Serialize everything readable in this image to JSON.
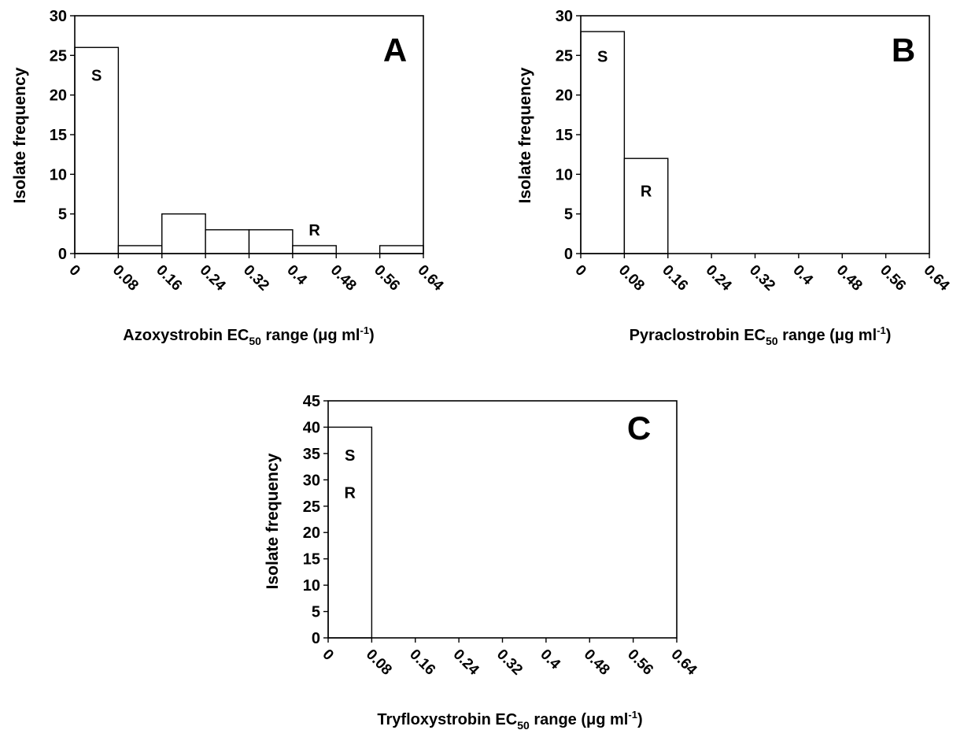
{
  "chart_data": [
    {
      "type": "bar",
      "panel": "A",
      "ylabel": "Isolate frequency",
      "xlabel": {
        "prefix": "Azoxystrobin EC",
        "sub": "50",
        "mid": " range (μg ml",
        "sup": "-1",
        "suffix": ")"
      },
      "x_ticks": [
        "0",
        "0.08",
        "0.16",
        "0.24",
        "0.32",
        "0.4",
        "0.48",
        "0.56",
        "0.64"
      ],
      "y_ticks": [
        "0",
        "5",
        "10",
        "15",
        "20",
        "25",
        "30"
      ],
      "ylim": [
        0,
        30
      ],
      "bins": [
        [
          0,
          0.08
        ],
        [
          0.08,
          0.16
        ],
        [
          0.16,
          0.24
        ],
        [
          0.24,
          0.32
        ],
        [
          0.32,
          0.4
        ],
        [
          0.4,
          0.48
        ],
        [
          0.48,
          0.56
        ],
        [
          0.56,
          0.64
        ]
      ],
      "values": [
        26,
        1,
        5,
        3,
        3,
        1,
        0,
        1
      ],
      "annotations": [
        {
          "text": "S",
          "x": 0.04,
          "y": 22.5
        },
        {
          "text": "R",
          "x": 0.44,
          "y": 3
        }
      ]
    },
    {
      "type": "bar",
      "panel": "B",
      "ylabel": "Isolate frequency",
      "xlabel": {
        "prefix": "Pyraclostrobin EC",
        "sub": "50",
        "mid": " range (μg ml",
        "sup": "-1",
        "suffix": ")"
      },
      "x_ticks": [
        "0",
        "0.08",
        "0.16",
        "0.24",
        "0.32",
        "0.4",
        "0.48",
        "0.56",
        "0.64"
      ],
      "y_ticks": [
        "0",
        "5",
        "10",
        "15",
        "20",
        "25",
        "30"
      ],
      "ylim": [
        0,
        30
      ],
      "bins": [
        [
          0,
          0.08
        ],
        [
          0.08,
          0.16
        ],
        [
          0.16,
          0.24
        ],
        [
          0.24,
          0.32
        ],
        [
          0.32,
          0.4
        ],
        [
          0.4,
          0.48
        ],
        [
          0.48,
          0.56
        ],
        [
          0.56,
          0.64
        ]
      ],
      "values": [
        28,
        12,
        0,
        0,
        0,
        0,
        0,
        0
      ],
      "annotations": [
        {
          "text": "S",
          "x": 0.04,
          "y": 24.9
        },
        {
          "text": "R",
          "x": 0.12,
          "y": 7.9
        }
      ]
    },
    {
      "type": "bar",
      "panel": "C",
      "ylabel": "Isolate frequency",
      "xlabel": {
        "prefix": "Tryfloxystrobin EC",
        "sub": "50",
        "mid": " range (μg ml",
        "sup": "-1",
        "suffix": ")"
      },
      "x_ticks": [
        "0",
        "0.08",
        "0.16",
        "0.24",
        "0.32",
        "0.4",
        "0.48",
        "0.56",
        "0.64"
      ],
      "y_ticks": [
        "0",
        "5",
        "10",
        "15",
        "20",
        "25",
        "30",
        "35",
        "40",
        "45"
      ],
      "ylim": [
        0,
        45
      ],
      "bins": [
        [
          0,
          0.08
        ],
        [
          0.08,
          0.16
        ],
        [
          0.16,
          0.24
        ],
        [
          0.24,
          0.32
        ],
        [
          0.32,
          0.4
        ],
        [
          0.4,
          0.48
        ],
        [
          0.48,
          0.56
        ],
        [
          0.56,
          0.64
        ]
      ],
      "values": [
        40,
        0,
        0,
        0,
        0,
        0,
        0,
        0
      ],
      "annotations": [
        {
          "text": "S",
          "x": 0.04,
          "y": 34.7
        },
        {
          "text": "R",
          "x": 0.04,
          "y": 27.6
        }
      ]
    }
  ]
}
